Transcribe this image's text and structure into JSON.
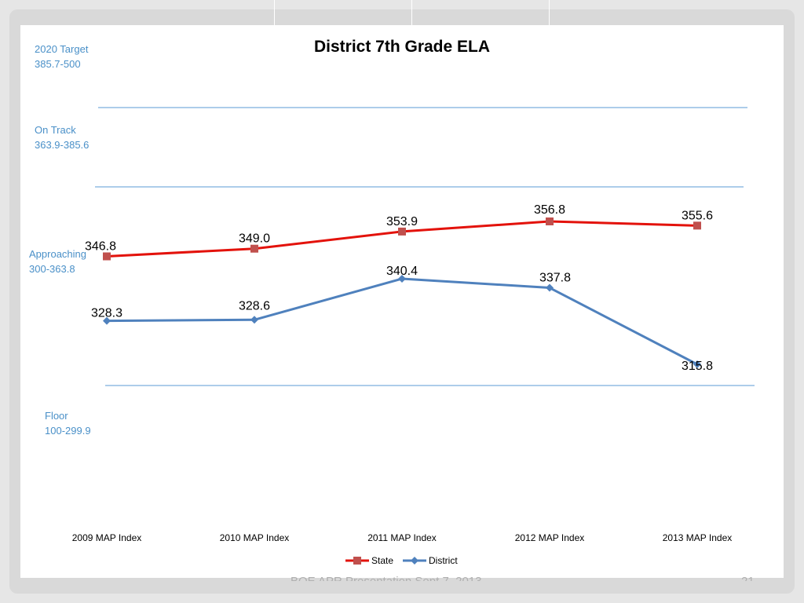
{
  "footer": {
    "text": "BOE APR Presentation Sept.7, 2013",
    "slide_number": "21"
  },
  "bands": [
    {
      "name": "2020 Target",
      "range": "385.7-500"
    },
    {
      "name": "On Track",
      "range": "363.9-385.6"
    },
    {
      "name": "Approaching",
      "range": "300-363.8"
    },
    {
      "name": "Floor",
      "range": "100-299.9"
    }
  ],
  "colors": {
    "state": "#e3120b",
    "state_marker": "#c0504d",
    "district": "#4f81bd",
    "band_line": "#5b9bd5",
    "band_text": "#4a90c8"
  },
  "chart_data": {
    "type": "line",
    "title": "District 7th Grade ELA",
    "categories": [
      "2009 MAP Index",
      "2010 MAP Index",
      "2011 MAP Index",
      "2012 MAP Index",
      "2013 MAP Index"
    ],
    "series": [
      {
        "name": "State",
        "values": [
          346.8,
          349.0,
          353.9,
          356.8,
          355.6
        ],
        "labels": [
          "346.8",
          "349.0",
          "353.9",
          "356.8",
          "355.6"
        ],
        "marker": "square"
      },
      {
        "name": "District",
        "values": [
          328.3,
          328.6,
          340.4,
          337.8,
          315.8
        ],
        "labels": [
          "328.3",
          "328.6",
          "340.4",
          "337.8",
          "315.8"
        ],
        "marker": "diamond"
      }
    ],
    "band_thresholds": [
      385.7,
      363.9,
      300
    ],
    "legend_position": "bottom",
    "grid": false
  }
}
